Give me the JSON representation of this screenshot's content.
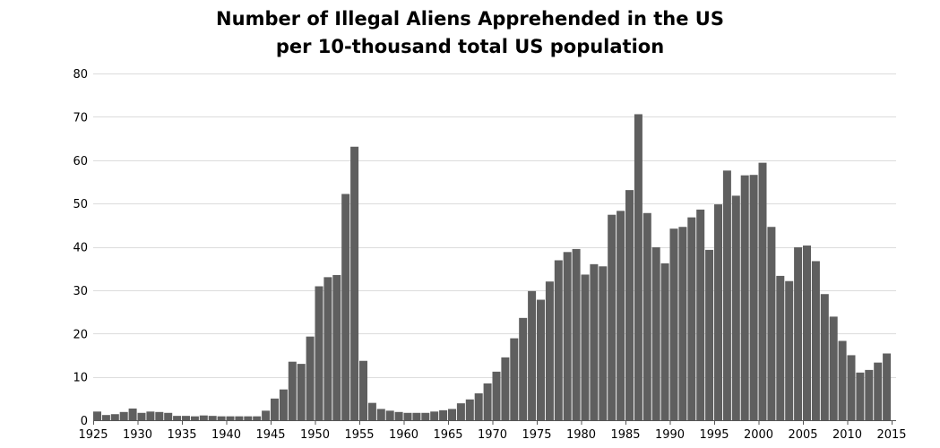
{
  "chart_data": {
    "type": "bar",
    "title": "Number of Illegal Aliens Apprehended in the US",
    "subtitle": "per 10-thousand total US population",
    "xlabel": "",
    "ylabel": "",
    "ylim": [
      0,
      80
    ],
    "xlim": [
      1925,
      2015
    ],
    "grid": true,
    "y_ticks": [
      0,
      10,
      20,
      30,
      40,
      50,
      60,
      70,
      80
    ],
    "x_ticks": [
      1925,
      1930,
      1935,
      1940,
      1945,
      1950,
      1955,
      1960,
      1965,
      1970,
      1975,
      1980,
      1985,
      1990,
      1995,
      2000,
      2005,
      2010,
      2015
    ],
    "bar_color": "#5f5f5f",
    "grid_color": "#dcdcdc",
    "axis_color": "#555555",
    "x": [
      1925,
      1926,
      1927,
      1928,
      1929,
      1930,
      1931,
      1932,
      1933,
      1934,
      1935,
      1936,
      1937,
      1938,
      1939,
      1940,
      1941,
      1942,
      1943,
      1944,
      1945,
      1946,
      1947,
      1948,
      1949,
      1950,
      1951,
      1952,
      1953,
      1954,
      1955,
      1956,
      1957,
      1958,
      1959,
      1960,
      1961,
      1962,
      1963,
      1964,
      1965,
      1966,
      1967,
      1968,
      1969,
      1970,
      1971,
      1972,
      1973,
      1974,
      1975,
      1976,
      1977,
      1978,
      1979,
      1980,
      1981,
      1982,
      1983,
      1984,
      1985,
      1986,
      1987,
      1988,
      1989,
      1990,
      1991,
      1992,
      1993,
      1994,
      1995,
      1996,
      1997,
      1998,
      1999,
      2000,
      2001,
      2002,
      2003,
      2004,
      2005,
      2006,
      2007,
      2008,
      2009,
      2010,
      2011,
      2012,
      2013,
      2014
    ],
    "values": [
      2.0,
      1.2,
      1.4,
      1.9,
      2.7,
      1.7,
      2.0,
      1.9,
      1.7,
      1.0,
      1.0,
      0.9,
      1.1,
      1.0,
      0.9,
      0.9,
      0.9,
      0.9,
      0.9,
      2.2,
      5.0,
      7.1,
      13.5,
      13.0,
      19.3,
      30.9,
      33.0,
      33.5,
      52.2,
      63.1,
      13.7,
      4.0,
      2.6,
      2.2,
      1.9,
      1.7,
      1.7,
      1.7,
      2.0,
      2.3,
      2.6,
      3.9,
      4.8,
      6.2,
      8.5,
      11.2,
      14.5,
      18.9,
      23.6,
      29.8,
      27.8,
      32.0,
      36.9,
      38.8,
      39.5,
      33.6,
      36.0,
      35.5,
      47.4,
      48.3,
      53.1,
      70.6,
      47.8,
      39.9,
      36.2,
      44.2,
      44.6,
      46.8,
      48.6,
      39.3,
      49.8,
      57.6,
      51.8,
      56.5,
      56.6,
      59.4,
      44.6,
      33.3,
      32.1,
      39.9,
      40.3,
      36.7,
      29.1,
      23.9,
      18.3,
      15.0,
      11.0,
      11.6,
      13.3,
      15.4
    ]
  }
}
